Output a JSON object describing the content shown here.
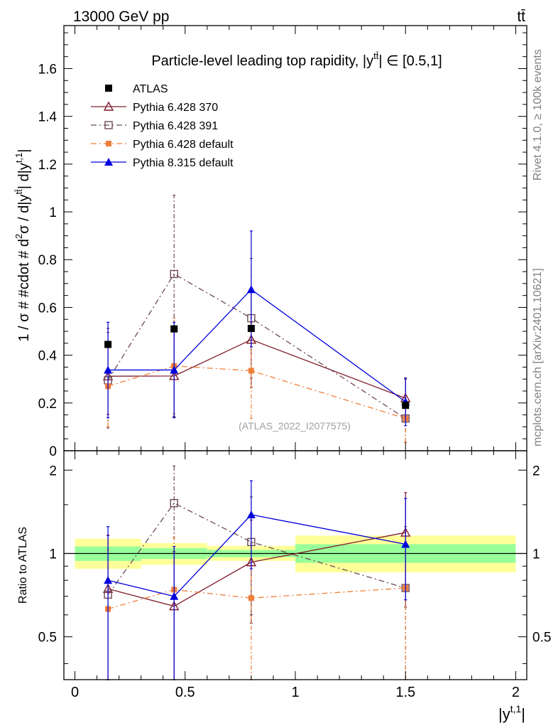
{
  "header": {
    "left": "13000 GeV pp",
    "right": "tt̄"
  },
  "side_labels": {
    "rivet": "Rivet 4.1.0, ≥ 100k events",
    "mcplots": "mcplots.cern.ch [arXiv:2401.10621]"
  },
  "colors": {
    "atlas": "#000000",
    "p370": "#7f1d2a",
    "p391": "#6e4a55",
    "p6def": "#f07f3a",
    "p8": "#0000dd",
    "band_green": "#99ff99",
    "band_yellow": "#ffff99"
  },
  "chart_data": [
    {
      "id": "main",
      "type": "scatter",
      "title": "Particle-level leading top rapidity, |y^{tt̄}| ∈ [0.5,1]",
      "title_prefix": "Particle-level leading top rapidity, |y",
      "title_sup": "tt̄",
      "title_suffix": "| ∈ [0.5,1]",
      "ylabel": "1 / σ # #cdot # d²σ / d|y^{tt̄}| d|y^{t,1}|",
      "ylabel_parts": [
        "1 / σ # #cdot # d",
        "2",
        "σ / d|y",
        "tt̄",
        "| d|y",
        "t,1",
        "|"
      ],
      "watermark": "(ATLAS_2022_I2077575)",
      "xlim": [
        -0.05,
        2.05
      ],
      "ylim": [
        0,
        1.78
      ],
      "yticks": [
        0,
        0.2,
        0.4,
        0.6,
        0.8,
        1,
        1.2,
        1.4,
        1.6
      ],
      "ytick_labels": [
        "0",
        "0.2",
        "0.4",
        "0.6",
        "0.8",
        "1",
        "1.2",
        "1.4",
        "1.6"
      ],
      "series": [
        {
          "name": "ATLAS",
          "key": "atlas",
          "marker": "square-filled",
          "line": "none",
          "x": [
            0.15,
            0.45,
            0.8,
            1.5
          ],
          "y": [
            0.445,
            0.51,
            0.512,
            0.19
          ],
          "err_lo": [
            0,
            0,
            0,
            0
          ],
          "err_hi": [
            0,
            0,
            0,
            0
          ]
        },
        {
          "name": "Pythia 6.428 370",
          "key": "p370",
          "marker": "triangle-open",
          "line": "solid",
          "x": [
            0.15,
            0.45,
            0.8,
            1.5
          ],
          "y": [
            0.312,
            0.313,
            0.465,
            0.22
          ],
          "err_lo": [
            0.16,
            0.17,
            0.2,
            0.1
          ],
          "err_hi": [
            0.2,
            0.2,
            0.2,
            0.08
          ]
        },
        {
          "name": "Pythia 6.428 391",
          "key": "p391",
          "marker": "square-open",
          "line": "dashdot",
          "x": [
            0.15,
            0.45,
            0.8,
            1.5
          ],
          "y": [
            0.295,
            0.74,
            0.555,
            0.135
          ],
          "err_lo": [
            0.2,
            0.6,
            0.25,
            0.1
          ],
          "err_hi": [
            0.2,
            0.33,
            0.25,
            0.1
          ]
        },
        {
          "name": "Pythia 6.428 default",
          "key": "p6def",
          "marker": "square-filled-small",
          "line": "dashdot",
          "x": [
            0.15,
            0.45,
            0.8,
            1.5
          ],
          "y": [
            0.27,
            0.355,
            0.335,
            0.135
          ],
          "err_lo": [
            0.17,
            0.2,
            0.2,
            0.1
          ],
          "err_hi": [
            0.17,
            0.2,
            0.2,
            0.1
          ]
        },
        {
          "name": "Pythia 8.315 default",
          "key": "p8",
          "marker": "triangle-filled",
          "line": "solid",
          "x": [
            0.15,
            0.45,
            0.8,
            1.5
          ],
          "y": [
            0.338,
            0.338,
            0.675,
            0.205
          ],
          "err_lo": [
            0.2,
            0.2,
            0.24,
            0.1
          ],
          "err_hi": [
            0.2,
            0.2,
            0.245,
            0.1
          ]
        }
      ]
    },
    {
      "id": "ratio",
      "type": "scatter",
      "ylabel": "Ratio to ATLAS",
      "xlabel": "|y^{t,1}|",
      "xlabel_base": "|y",
      "xlabel_sup": "t,1",
      "xlabel_end": "|",
      "xlim": [
        -0.05,
        2.05
      ],
      "ylim": [
        0.35,
        2.35
      ],
      "yscale": "log",
      "yticks": [
        0.5,
        1,
        2
      ],
      "ytick_labels": [
        "0.5",
        "1",
        "2"
      ],
      "xticks": [
        0,
        0.5,
        1,
        1.5,
        2
      ],
      "xtick_labels": [
        "0",
        "0.5",
        "1",
        "1.5",
        "2"
      ],
      "bands": [
        {
          "x0": 0.0,
          "x1": 0.3,
          "green": [
            0.94,
            1.06
          ],
          "yellow": [
            0.88,
            1.13
          ]
        },
        {
          "x0": 0.3,
          "x1": 0.6,
          "green": [
            0.955,
            1.045
          ],
          "yellow": [
            0.91,
            1.09
          ]
        },
        {
          "x0": 0.6,
          "x1": 1.0,
          "green": [
            0.97,
            1.03
          ],
          "yellow": [
            0.94,
            1.065
          ]
        },
        {
          "x0": 1.0,
          "x1": 2.0,
          "green": [
            0.925,
            1.08
          ],
          "yellow": [
            0.855,
            1.16
          ]
        }
      ],
      "series": [
        {
          "name": "Pythia 6.428 370",
          "key": "p370",
          "marker": "triangle-open",
          "line": "solid",
          "x": [
            0.15,
            0.45,
            0.8,
            1.5
          ],
          "y": [
            0.745,
            0.645,
            0.93,
            1.19
          ],
          "err_lo": [
            0.4,
            0.35,
            0.37,
            0.55
          ],
          "err_hi": [
            0.42,
            0.37,
            0.39,
            0.47
          ]
        },
        {
          "name": "Pythia 6.428 391",
          "key": "p391",
          "marker": "square-open",
          "line": "dashdot",
          "x": [
            0.15,
            0.45,
            0.8,
            1.5
          ],
          "y": [
            0.71,
            1.52,
            1.1,
            0.75
          ],
          "err_lo": [
            0.45,
            1.2,
            0.5,
            0.5
          ],
          "err_hi": [
            0.45,
            0.55,
            0.5,
            0.5
          ]
        },
        {
          "name": "Pythia 6.428 default",
          "key": "p6def",
          "marker": "square-filled-small",
          "line": "dashdot",
          "x": [
            0.15,
            0.45,
            0.8,
            1.5
          ],
          "y": [
            0.63,
            0.74,
            0.69,
            0.75
          ],
          "err_lo": [
            0.4,
            0.4,
            0.4,
            0.45
          ],
          "err_hi": [
            0.4,
            0.4,
            0.4,
            0.45
          ]
        },
        {
          "name": "Pythia 8.315 default",
          "key": "p8",
          "marker": "triangle-filled",
          "line": "solid",
          "x": [
            0.15,
            0.45,
            0.8,
            1.5
          ],
          "y": [
            0.8,
            0.7,
            1.38,
            1.08
          ],
          "err_lo": [
            0.45,
            0.45,
            0.5,
            0.4
          ],
          "err_hi": [
            0.45,
            0.36,
            0.45,
            0.5
          ]
        }
      ]
    }
  ]
}
